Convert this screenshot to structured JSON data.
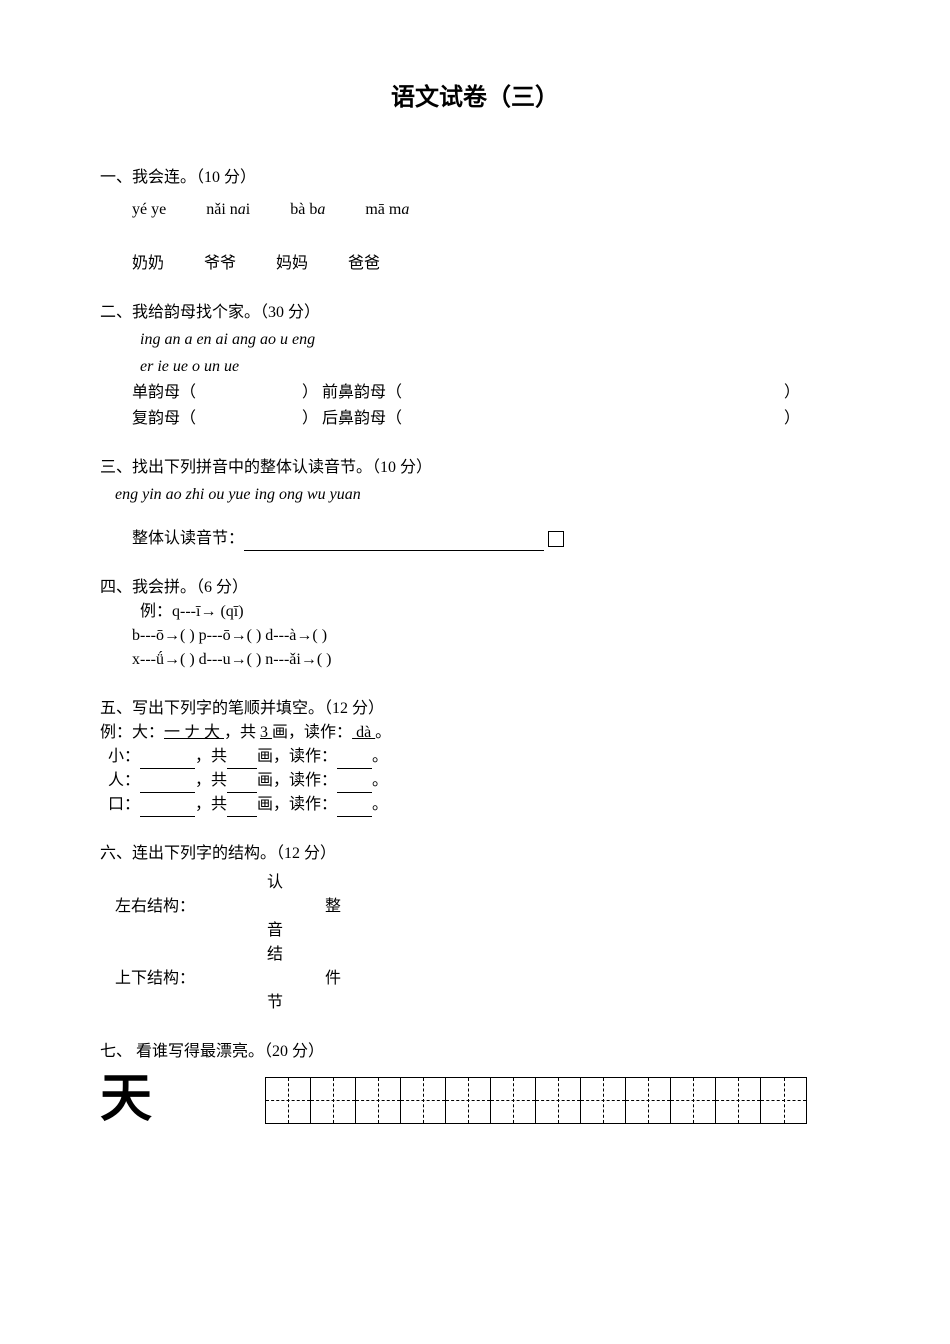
{
  "title": "语文试卷（三）",
  "q1": {
    "header": "一、我会连。（10 分）",
    "pinyin": [
      {
        "pre": "y",
        "tone": "é",
        "mid": " ",
        "post": "ye"
      },
      {
        "pre": "n",
        "tone": "ǎ",
        "mid": "i n",
        "it": "a",
        "post": "i"
      },
      {
        "pre": "b",
        "tone": "à",
        "mid": " b",
        "it": "a",
        "post": ""
      },
      {
        "pre": "m",
        "tone": "ā",
        "mid": " m",
        "it": "a",
        "post": ""
      }
    ],
    "chinese": [
      "奶奶",
      "爷爷",
      "妈妈",
      "爸爸"
    ]
  },
  "q2": {
    "header": "二、我给韵母找个家。（30 分）",
    "line1": "ing  an  a  en  ai  ang  ao  u  eng",
    "line2": "er  ie  ue  o   un  ue",
    "row1_left": "单韵母（",
    "row1_mid": "）   前鼻韵母（",
    "row1_right": "）",
    "row2_left": "复韵母（",
    "row2_mid": "）   后鼻韵母（",
    "row2_right": "）"
  },
  "q3": {
    "header": "三、找出下列拼音中的整体认读音节。（10 分）",
    "line": "eng  yin  ao  zhi  ou  yue  ing  ong  wu  yuan",
    "label": "整体认读音节："
  },
  "q4": {
    "header": "四、我会拼。（6 分）",
    "example_pre": "例：q---",
    "example_tone": "ī",
    "example_arrow": "→ (q",
    "example_tone2": "ī",
    "example_end": ")",
    "row1": {
      "a1": "b---",
      "t1": "ō",
      "a2": "→(     )   p---",
      "t2": "ō",
      "a3": "→(     )   d---",
      "t3": "à",
      "a4": "→(     )"
    },
    "row2": {
      "a1": "x---",
      "t1": "ǘ",
      "a2": "→(     )   d---u→(     )   n---",
      "t3": "ǎ",
      "a4": "i→(     )"
    }
  },
  "q5": {
    "header": "五、写出下列字的笔顺并填空。（12 分）",
    "example_label": "例：大：",
    "example_strokes": "一 ナ 大 ",
    "example_mid": "，共 ",
    "example_num": "3 ",
    "example_hua": "画，读作：",
    "example_read": " dà   ",
    "example_end": "。",
    "rows": [
      {
        "char": "小：",
        "end": "，共",
        "hua": "画，读作：",
        "period": "。"
      },
      {
        "char": "人：",
        "end": "，共",
        "hua": "画，读作：",
        "period": "。"
      },
      {
        "char": "口：",
        "end": "，共",
        "hua": "画，读作：",
        "period": "。"
      }
    ]
  },
  "q6": {
    "header": "六、连出下列字的结构。（12 分）",
    "left_labels": [
      "左右结构：",
      "上下结构："
    ],
    "col1": [
      "认",
      "",
      "音",
      "结",
      "",
      "节"
    ],
    "col2": [
      "",
      "整",
      "",
      "",
      "件",
      ""
    ]
  },
  "q7": {
    "header": "七、   看谁写得最漂亮。（20 分）",
    "char": "天",
    "cells": 12
  }
}
